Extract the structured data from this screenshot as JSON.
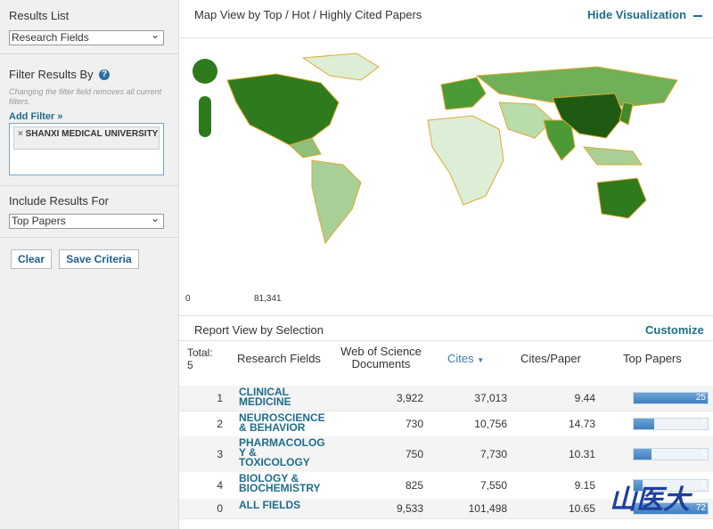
{
  "sidebar": {
    "results_list": {
      "label": "Results List",
      "selected": "Research Fields"
    },
    "filter": {
      "label": "Filter Results By",
      "note": "Changing the filter field removes all current filters.",
      "add_filter": "Add Filter »",
      "chips": [
        "SHANXI MEDICAL UNIVERSITY"
      ]
    },
    "include": {
      "label": "Include Results For",
      "selected": "Top Papers"
    },
    "buttons": [
      "Clear",
      "Save Criteria"
    ]
  },
  "map": {
    "title": "Map View by Top / Hot / Highly Cited Papers",
    "hide": "Hide Visualization",
    "legend_min": "0",
    "legend_max": "81,341"
  },
  "report": {
    "title": "Report View by Selection",
    "customize": "Customize",
    "total_label": "Total:",
    "total": 5,
    "columns": [
      "Research Fields",
      "Web of Science Documents",
      "Cites",
      "Cites/Paper",
      "Top Papers"
    ],
    "rows": [
      {
        "rank": "1",
        "field": "CLINICAL MEDICINE",
        "documents": "3,922",
        "cites": "37,013",
        "cites_per_paper": "9.44",
        "top_papers": 25
      },
      {
        "rank": "2",
        "field": "NEUROSCIENCE & BEHAVIOR",
        "documents": "730",
        "cites": "10,756",
        "cites_per_paper": "14.73",
        "top_papers": 7
      },
      {
        "rank": "3",
        "field": "PHARMACOLOGY & TOXICOLOGY",
        "documents": "750",
        "cites": "7,730",
        "cites_per_paper": "10.31",
        "top_papers": 6
      },
      {
        "rank": "4",
        "field": "BIOLOGY & BIOCHEMISTRY",
        "documents": "825",
        "cites": "7,550",
        "cites_per_paper": "9.15",
        "top_papers": 3
      },
      {
        "rank": "0",
        "field": "ALL FIELDS",
        "documents": "9,533",
        "cites": "101,498",
        "cites_per_paper": "10.65",
        "top_papers": 72
      }
    ]
  },
  "watermark": "山医大"
}
